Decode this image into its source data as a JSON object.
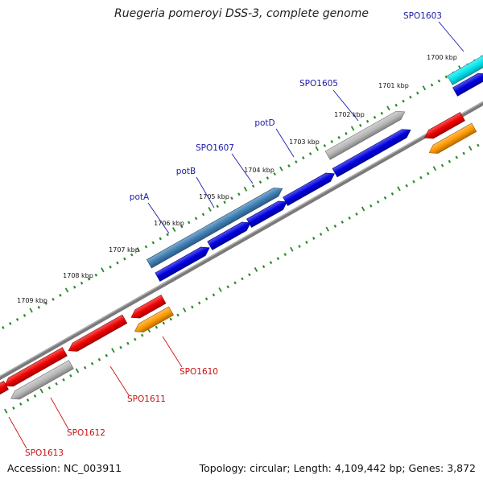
{
  "title": "Ruegeria pomeroyi DSS-3, complete genome",
  "footer": {
    "accession": "Accession: NC_003911",
    "topology": "Topology: circular; Length: 4,109,442 bp; Genes: 3,872"
  },
  "colors": {
    "backbone": "#7a7a7a",
    "ticks": "#2a8a2a",
    "forward_label": "#1a1aaa",
    "reverse_label": "#cc1111",
    "cds_blue": "#0000e0",
    "cds_steelblue": "#3f7fb5",
    "cds_gray": "#b8b8b8",
    "cds_cyan": "#00e5ee",
    "cds_red": "#ee0000",
    "cds_orange": "#ff9900"
  },
  "scale_labels": [
    "1700 kbp",
    "1701 kbp",
    "1702 kbp",
    "1703 kbp",
    "1704 kbp",
    "1705 kbp",
    "1706 kbp",
    "1707 kbp",
    "1708 kbp",
    "1709 kbp"
  ],
  "gene_labels": [
    "SPO1603",
    "SPO1605",
    "potD",
    "SPO1607",
    "potB",
    "potA",
    "SPO1610",
    "SPO1611",
    "SPO1612",
    "SPO1613"
  ]
}
